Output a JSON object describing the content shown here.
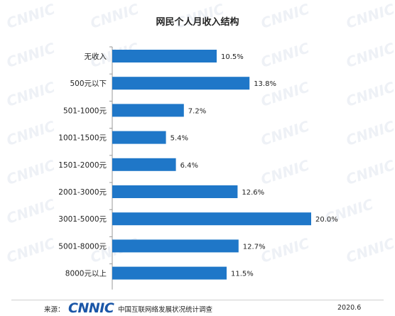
{
  "watermark_text": "CNNIC",
  "chart_data": {
    "type": "bar",
    "orientation": "horizontal",
    "title": "网民个人月收入结构",
    "categories": [
      "无收入",
      "500元以下",
      "501-1000元",
      "1001-1500元",
      "1501-2000元",
      "2001-3000元",
      "3001-5000元",
      "5001-8000元",
      "8000元以上"
    ],
    "values": [
      10.5,
      13.8,
      7.2,
      5.4,
      6.4,
      12.6,
      20.0,
      12.7,
      11.5
    ],
    "value_labels": [
      "10.5%",
      "13.8%",
      "7.2%",
      "5.4%",
      "6.4%",
      "12.6%",
      "20.0%",
      "12.7%",
      "11.5%"
    ],
    "unit": "%",
    "xlim": [
      0,
      20.0
    ],
    "bar_color": "#1f77c8",
    "grid": false,
    "legend": "none"
  },
  "footer": {
    "source_label": "来源：",
    "logo_text": "CNNIC",
    "org_text": "中国互联网络发展状况统计调查",
    "date": "2020.6"
  }
}
